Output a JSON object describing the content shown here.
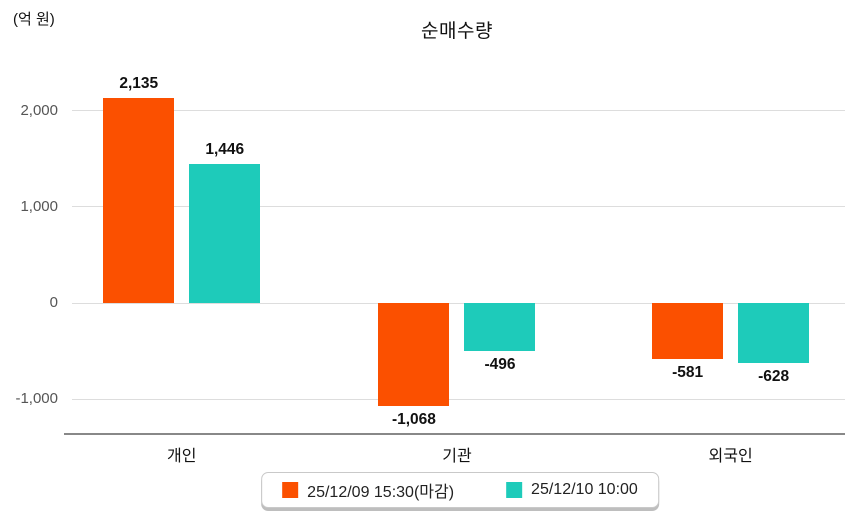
{
  "chart_data": {
    "type": "bar",
    "title": "순매수량",
    "unit_label": "(억 원)",
    "categories": [
      "개인",
      "기관",
      "외국인"
    ],
    "series": [
      {
        "name": "25/12/09 15:30(마감)",
        "color": "#fb5000",
        "values": [
          2135,
          -1068,
          -581
        ],
        "value_labels": [
          "2,135",
          "-1,068",
          "-581"
        ]
      },
      {
        "name": "25/12/10 10:00",
        "color": "#1ecbba",
        "values": [
          1446,
          -496,
          -628
        ],
        "value_labels": [
          "1,446",
          "-496",
          "-628"
        ]
      }
    ],
    "y_axis": {
      "ticks": [
        2000,
        1000,
        0,
        -1000
      ],
      "tick_labels": [
        "2,000",
        "1,000",
        "0",
        "-1,000"
      ],
      "min": -1350,
      "max": 2400
    },
    "grid": true,
    "legend_position": "bottom",
    "grid_color": "#dddddd",
    "axis_color": "#888888",
    "tick_text_color": "#555555"
  }
}
